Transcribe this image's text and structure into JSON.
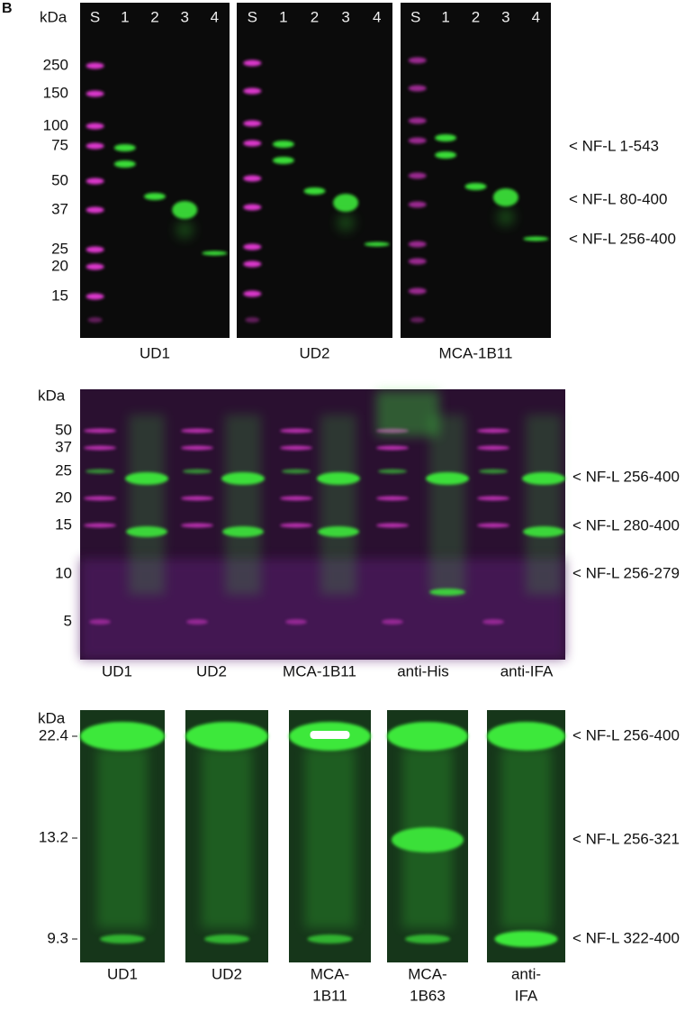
{
  "panel_label": "B",
  "panel_a": {
    "unit_label": "kDa",
    "lane_labels": [
      "S",
      "1",
      "2",
      "3",
      "4"
    ],
    "markers": [
      "250",
      "150",
      "100",
      "75",
      "50",
      "37",
      "25",
      "20",
      "15"
    ],
    "blots": [
      "UD1",
      "UD2",
      "MCA-1B11"
    ],
    "annotations": [
      "< NF-L 1-543",
      "< NF-L 80-400",
      "< NF-L 256-400"
    ]
  },
  "panel_b": {
    "unit_label": "kDa",
    "markers": [
      "50",
      "37",
      "25",
      "20",
      "15",
      "10",
      "5"
    ],
    "lanes": [
      "UD1",
      "UD2",
      "MCA-1B11",
      "anti-His",
      "anti-IFA"
    ],
    "annotations": [
      "< NF-L 256-400",
      "< NF-L 280-400",
      "< NF-L 256-279"
    ]
  },
  "panel_c": {
    "unit_label": "kDa",
    "markers": [
      "22.4",
      "13.2",
      "9.3"
    ],
    "strips": [
      [
        "UD1"
      ],
      [
        "UD2"
      ],
      [
        "MCA-",
        "1B11"
      ],
      [
        "MCA-",
        "1B63"
      ],
      [
        "anti-",
        "IFA"
      ]
    ],
    "annotations": [
      "< NF-L 256-400",
      "< NF-L 256-321",
      "< NF-L 322-400"
    ]
  }
}
